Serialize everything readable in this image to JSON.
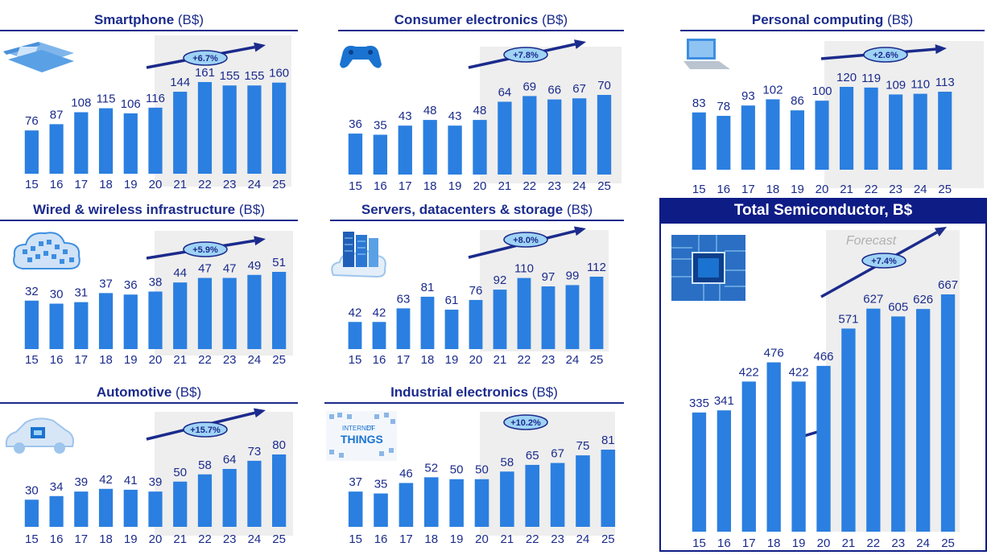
{
  "colors": {
    "bar": "#2b7fe0",
    "text": "#1b2b8c",
    "forecast_bg": "#eeeeee",
    "arrow": "#1b2b8c",
    "badge": "#9fd3f5"
  },
  "chart_data": [
    {
      "type": "bar",
      "title": "Smartphone",
      "unit": "(B$)",
      "cagr": "+6.7%",
      "icon": "smartphone-icon",
      "categories": [
        "15",
        "16",
        "17",
        "18",
        "19",
        "20",
        "21",
        "22",
        "23",
        "24",
        "25"
      ],
      "values": [
        76,
        87,
        108,
        115,
        106,
        116,
        144,
        161,
        155,
        155,
        160
      ],
      "forecast_start_index": 6
    },
    {
      "type": "bar",
      "title": "Consumer electronics",
      "unit": "(B$)",
      "cagr": "+7.8%",
      "icon": "game-controller-icon",
      "categories": [
        "15",
        "16",
        "17",
        "18",
        "19",
        "20",
        "21",
        "22",
        "23",
        "24",
        "25"
      ],
      "values": [
        36,
        35,
        43,
        48,
        43,
        48,
        64,
        69,
        66,
        67,
        70
      ],
      "forecast_start_index": 6
    },
    {
      "type": "bar",
      "title": "Personal computing",
      "unit": "(B$)",
      "cagr": "+2.6%",
      "icon": "laptop-icon",
      "categories": [
        "15",
        "16",
        "17",
        "18",
        "19",
        "20",
        "21",
        "22",
        "23",
        "24",
        "25"
      ],
      "values": [
        83,
        78,
        93,
        102,
        86,
        100,
        120,
        119,
        109,
        110,
        113
      ],
      "forecast_start_index": 6
    },
    {
      "type": "bar",
      "title": "Wired & wireless infrastructure",
      "unit": "(B$)",
      "cagr": "+5.9%",
      "icon": "cloud-network-icon",
      "categories": [
        "15",
        "16",
        "17",
        "18",
        "19",
        "20",
        "21",
        "22",
        "23",
        "24",
        "25"
      ],
      "values": [
        32,
        30,
        31,
        37,
        36,
        38,
        44,
        47,
        47,
        49,
        51
      ],
      "forecast_start_index": 6
    },
    {
      "type": "bar",
      "title": "Servers, datacenters & storage",
      "unit": "(B$)",
      "cagr": "+8.0%",
      "icon": "server-cloud-icon",
      "categories": [
        "15",
        "16",
        "17",
        "18",
        "19",
        "20",
        "21",
        "22",
        "23",
        "24",
        "25"
      ],
      "values": [
        42,
        42,
        63,
        81,
        61,
        76,
        92,
        110,
        97,
        99,
        112
      ],
      "forecast_start_index": 6
    },
    {
      "type": "bar",
      "title": "Automotive",
      "unit": "(B$)",
      "cagr": "+15.7%",
      "icon": "car-chip-icon",
      "categories": [
        "15",
        "16",
        "17",
        "18",
        "19",
        "20",
        "21",
        "22",
        "23",
        "24",
        "25"
      ],
      "values": [
        30,
        34,
        39,
        42,
        41,
        39,
        50,
        58,
        64,
        73,
        80
      ],
      "forecast_start_index": 6
    },
    {
      "type": "bar",
      "title": "Industrial electronics",
      "unit": "(B$)",
      "cagr": "+10.2%",
      "icon": "internet-of-things-icon",
      "icon_text": [
        "INTERNET",
        "OF",
        "THINGS"
      ],
      "categories": [
        "15",
        "16",
        "17",
        "18",
        "19",
        "20",
        "21",
        "22",
        "23",
        "24",
        "25"
      ],
      "values": [
        37,
        35,
        46,
        52,
        50,
        50,
        58,
        65,
        67,
        75,
        81
      ],
      "forecast_start_index": 6
    },
    {
      "type": "bar",
      "title": "Total Semiconductor, B$",
      "cagr": "+7.4%",
      "forecast_label": "Forecast",
      "icon": "microchip-icon",
      "categories": [
        "15",
        "16",
        "17",
        "18",
        "19",
        "20",
        "21",
        "22",
        "23",
        "24",
        "25"
      ],
      "values": [
        335,
        341,
        422,
        476,
        422,
        466,
        571,
        627,
        605,
        626,
        667
      ],
      "forecast_start_index": 6
    }
  ]
}
